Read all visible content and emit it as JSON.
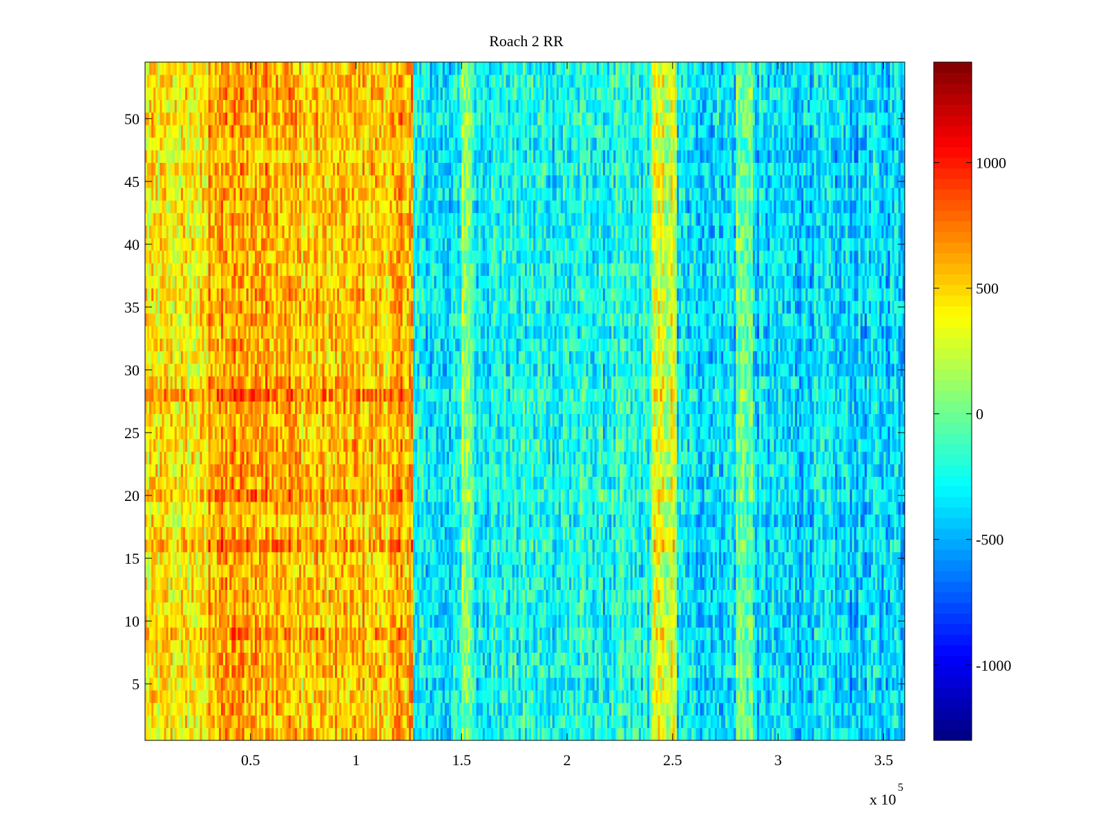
{
  "chart_data": {
    "type": "heatmap",
    "title": "Roach 2 RR",
    "xlabel": "",
    "ylabel": "",
    "x_multiplier_label": "x 10",
    "x_multiplier_exponent": "5",
    "xlim": [
      0,
      3.6
    ],
    "ylim": [
      0.5,
      54.5
    ],
    "x_ticks": [
      0.5,
      1,
      1.5,
      2,
      2.5,
      3,
      3.5
    ],
    "x_tick_labels": [
      "0.5",
      "1",
      "1.5",
      "2",
      "2.5",
      "3",
      "3.5"
    ],
    "y_ticks": [
      5,
      10,
      15,
      20,
      25,
      30,
      35,
      40,
      45,
      50
    ],
    "y_tick_labels": [
      "5",
      "10",
      "15",
      "20",
      "25",
      "30",
      "35",
      "40",
      "45",
      "50"
    ],
    "rows": 54,
    "colormap": "jet",
    "clim": [
      -1300,
      1400
    ],
    "colorbar_ticks": [
      -1000,
      -500,
      0,
      500,
      1000
    ],
    "colorbar_tick_labels": [
      "-1000",
      "-500",
      "0",
      "500",
      "1000"
    ],
    "column_bands": [
      {
        "x_start": 0.0,
        "x_end": 0.3,
        "mean_value": 400
      },
      {
        "x_start": 0.3,
        "x_end": 0.7,
        "mean_value": 620
      },
      {
        "x_start": 0.7,
        "x_end": 1.2,
        "mean_value": 520
      },
      {
        "x_start": 1.2,
        "x_end": 1.27,
        "mean_value": 620
      },
      {
        "x_start": 1.27,
        "x_end": 1.5,
        "mean_value": -320
      },
      {
        "x_start": 1.5,
        "x_end": 1.55,
        "mean_value": 100
      },
      {
        "x_start": 1.55,
        "x_end": 2.4,
        "mean_value": -250
      },
      {
        "x_start": 2.4,
        "x_end": 2.52,
        "mean_value": 250
      },
      {
        "x_start": 2.52,
        "x_end": 2.8,
        "mean_value": -350
      },
      {
        "x_start": 2.8,
        "x_end": 2.88,
        "mean_value": 0
      },
      {
        "x_start": 2.88,
        "x_end": 3.6,
        "mean_value": -380
      }
    ],
    "highlight_rows": [
      {
        "y": 28,
        "value_offset": 250
      },
      {
        "y": 9,
        "value_offset": 150
      },
      {
        "y": 16,
        "value_offset": 120
      },
      {
        "y": 20,
        "value_offset": 100
      }
    ],
    "colors": {
      "frame": "#000000",
      "background": "#ffffff"
    }
  }
}
